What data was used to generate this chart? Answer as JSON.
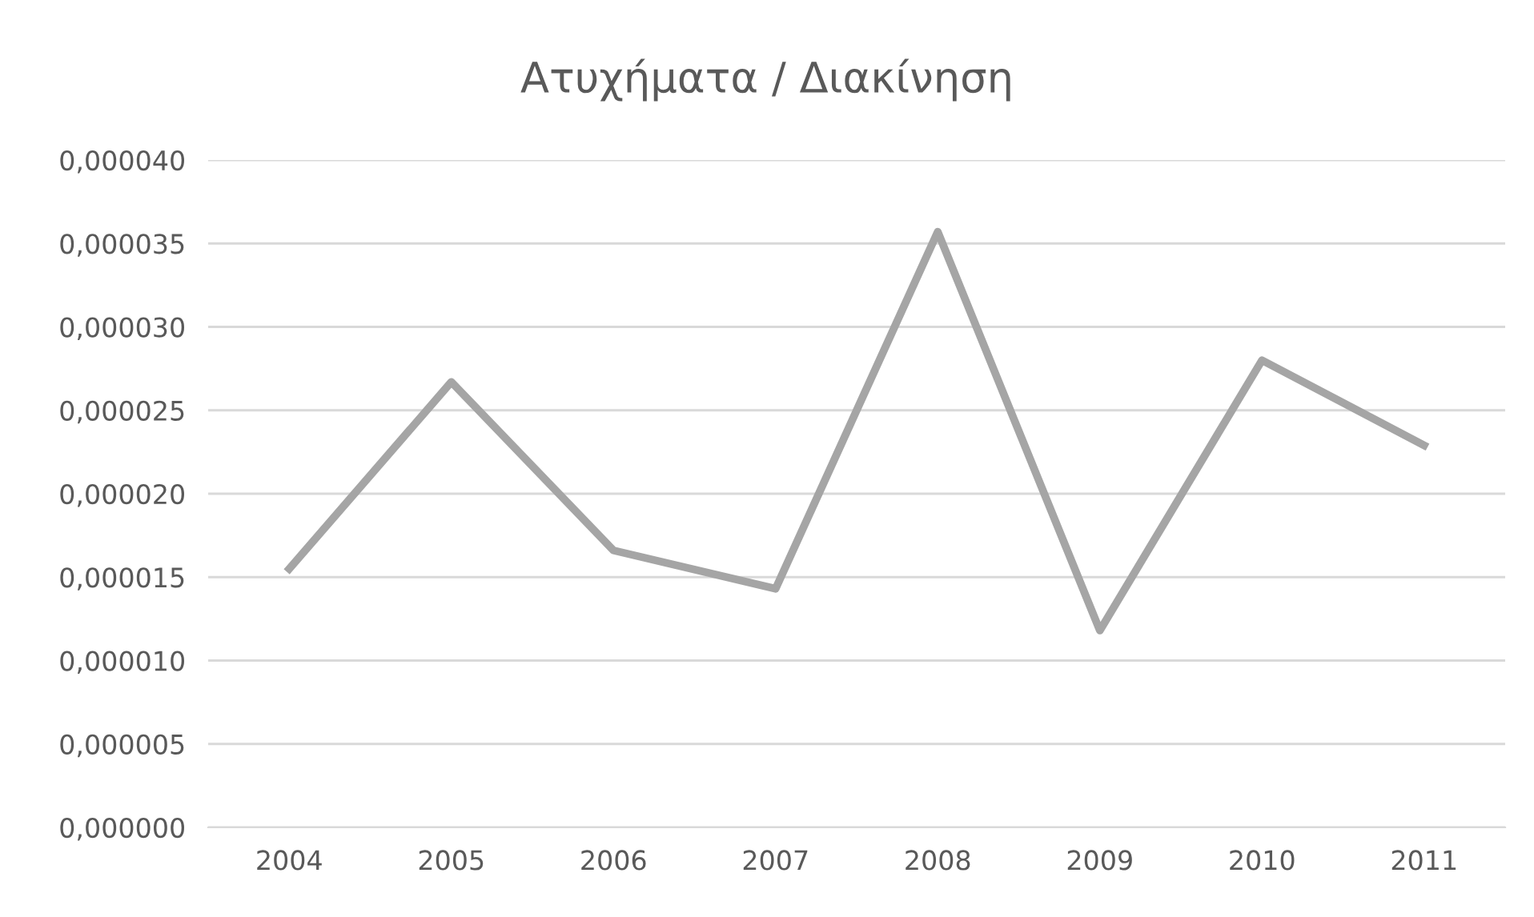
{
  "chart_data": {
    "type": "line",
    "title": "Ατυχήματα / Διακίνηση",
    "categories": [
      "2004",
      "2005",
      "2006",
      "2007",
      "2008",
      "2009",
      "2010",
      "2011"
    ],
    "series": [
      {
        "color": "#a5a5a5",
        "values": [
          1.55e-05,
          2.67e-05,
          1.66e-05,
          1.43e-05,
          3.57e-05,
          1.18e-05,
          2.8e-05,
          2.29e-05
        ]
      }
    ],
    "ylim": [
      0,
      4e-05
    ],
    "yticks": [
      {
        "value": 0,
        "label": "0,000000"
      },
      {
        "value": 5e-06,
        "label": "0,000005"
      },
      {
        "value": 1e-05,
        "label": "0,000010"
      },
      {
        "value": 1.5e-05,
        "label": "0,000015"
      },
      {
        "value": 2e-05,
        "label": "0,000020"
      },
      {
        "value": 2.5e-05,
        "label": "0,000025"
      },
      {
        "value": 3e-05,
        "label": "0,000030"
      },
      {
        "value": 3.5e-05,
        "label": "0,000035"
      },
      {
        "value": 4e-05,
        "label": "0,000040"
      }
    ],
    "grid": "y",
    "marker": "none",
    "line_style": "solid"
  }
}
